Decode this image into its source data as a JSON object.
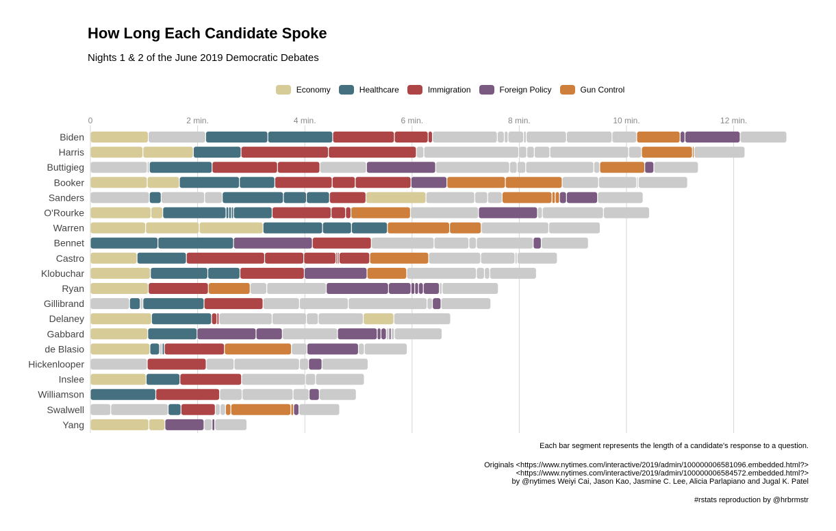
{
  "title": "How Long Each Candidate Spoke",
  "subtitle": "Nights 1 & 2 of the June 2019 Democratic Debates",
  "colors": {
    "Economy": "#d7cb98",
    "Healthcare": "#45707f",
    "Immigration": "#ad4546",
    "Foreign Policy": "#7a5a80",
    "Gun Control": "#ce7f3c",
    "Other": "#cbcbcb",
    "grid": "#d4d4d4"
  },
  "chart_data": {
    "type": "bar",
    "orientation": "horizontal",
    "stacked": true,
    "x_unit": "minutes",
    "xlim": [
      0,
      13.3
    ],
    "xticks": [
      0,
      2,
      4,
      6,
      8,
      10,
      12
    ],
    "xtick_labels": [
      "0",
      "2 min.",
      "4 min.",
      "6 min.",
      "8 min.",
      "10 min.",
      "12 min."
    ],
    "legend_position": "top",
    "legend": [
      "Economy",
      "Healthcare",
      "Immigration",
      "Foreign Policy",
      "Gun Control"
    ],
    "candidates": [
      {
        "name": "Biden",
        "segments": [
          [
            "Economy",
            1.08
          ],
          [
            "Other",
            1.07
          ],
          [
            "Healthcare",
            1.16
          ],
          [
            "Healthcare",
            1.21
          ],
          [
            "Immigration",
            1.15
          ],
          [
            "Immigration",
            0.63
          ],
          [
            "Immigration",
            0.08
          ],
          [
            "Other",
            1.21
          ],
          [
            "Other",
            0.13
          ],
          [
            "Other",
            0.07
          ],
          [
            "Other",
            0.29
          ],
          [
            "Other",
            0.05
          ],
          [
            "Other",
            0.75
          ],
          [
            "Other",
            0.85
          ],
          [
            "Other",
            0.46
          ],
          [
            "Gun Control",
            0.81
          ],
          [
            "Foreign Policy",
            0.09
          ],
          [
            "Foreign Policy",
            1.03
          ],
          [
            "Other",
            0.87
          ]
        ]
      },
      {
        "name": "Harris",
        "segments": [
          [
            "Economy",
            0.98
          ],
          [
            "Economy",
            0.94
          ],
          [
            "Healthcare",
            0.89
          ],
          [
            "Immigration",
            1.63
          ],
          [
            "Immigration",
            1.64
          ],
          [
            "Other",
            0.14
          ],
          [
            "Other",
            1.77
          ],
          [
            "Other",
            0.15
          ],
          [
            "Other",
            0.14
          ],
          [
            "Other",
            0.29
          ],
          [
            "Other",
            1.47
          ],
          [
            "Other",
            0.24
          ],
          [
            "Gun Control",
            0.95
          ],
          [
            "Gun Control",
            0.03
          ],
          [
            "Other",
            0.95
          ]
        ]
      },
      {
        "name": "Buttigieg",
        "segments": [
          [
            "Other",
            1.06
          ],
          [
            "Other",
            0.04
          ],
          [
            "Healthcare",
            1.17
          ],
          [
            "Immigration",
            1.22
          ],
          [
            "Immigration",
            0.79
          ],
          [
            "Other",
            0.87
          ],
          [
            "Foreign Policy",
            1.29
          ],
          [
            "Other",
            1.38
          ],
          [
            "Other",
            0.14
          ],
          [
            "Other",
            0.16
          ],
          [
            "Other",
            1.27
          ],
          [
            "Other",
            0.11
          ],
          [
            "Gun Control",
            0.84
          ],
          [
            "Foreign Policy",
            0.17
          ],
          [
            "Other",
            0.83
          ]
        ]
      },
      {
        "name": "Booker",
        "segments": [
          [
            "Economy",
            1.06
          ],
          [
            "Economy",
            0.6
          ],
          [
            "Healthcare",
            1.12
          ],
          [
            "Healthcare",
            0.66
          ],
          [
            "Immigration",
            1.07
          ],
          [
            "Immigration",
            0.43
          ],
          [
            "Immigration",
            1.04
          ],
          [
            "Foreign Policy",
            0.67
          ],
          [
            "Gun Control",
            1.09
          ],
          [
            "Gun Control",
            1.06
          ],
          [
            "Other",
            0.68
          ],
          [
            "Other",
            0.71
          ],
          [
            "Other",
            0.03
          ],
          [
            "Other",
            0.92
          ]
        ]
      },
      {
        "name": "Sanders",
        "segments": [
          [
            "Other",
            1.1
          ],
          [
            "Healthcare",
            0.22
          ],
          [
            "Other",
            0.81
          ],
          [
            "Other",
            0.33
          ],
          [
            "Healthcare",
            1.14
          ],
          [
            "Healthcare",
            0.43
          ],
          [
            "Healthcare",
            0.43
          ],
          [
            "Immigration",
            0.68
          ],
          [
            "Economy",
            1.12
          ],
          [
            "Other",
            0.91
          ],
          [
            "Other",
            0.24
          ],
          [
            "Other",
            0.27
          ],
          [
            "Gun Control",
            0.93
          ],
          [
            "Gun Control",
            0.06
          ],
          [
            "Gun Control",
            0.08
          ],
          [
            "Foreign Policy",
            0.13
          ],
          [
            "Foreign Policy",
            0.58
          ],
          [
            "Other",
            0.85
          ]
        ]
      },
      {
        "name": "O'Rourke",
        "segments": [
          [
            "Economy",
            1.13
          ],
          [
            "Economy",
            0.22
          ],
          [
            "Healthcare",
            1.18
          ],
          [
            "Healthcare",
            0.05
          ],
          [
            "Healthcare",
            0.05
          ],
          [
            "Healthcare",
            0.04
          ],
          [
            "Healthcare",
            0.72
          ],
          [
            "Immigration",
            1.1
          ],
          [
            "Immigration",
            0.27
          ],
          [
            "Immigration",
            0.1
          ],
          [
            "Gun Control",
            1.11
          ],
          [
            "Other",
            1.27
          ],
          [
            "Foreign Policy",
            1.1
          ],
          [
            "Other",
            0.09
          ],
          [
            "Other",
            1.14
          ],
          [
            "Other",
            0.86
          ]
        ]
      },
      {
        "name": "Warren",
        "segments": [
          [
            "Economy",
            1.03
          ],
          [
            "Economy",
            1.0
          ],
          [
            "Economy",
            1.19
          ],
          [
            "Healthcare",
            1.11
          ],
          [
            "Healthcare",
            0.54
          ],
          [
            "Healthcare",
            0.67
          ],
          [
            "Gun Control",
            1.16
          ],
          [
            "Gun Control",
            0.59
          ],
          [
            "Other",
            1.26
          ],
          [
            "Other",
            0.96
          ]
        ]
      },
      {
        "name": "Bennet",
        "segments": [
          [
            "Healthcare",
            1.26
          ],
          [
            "Healthcare",
            1.41
          ],
          [
            "Foreign Policy",
            1.47
          ],
          [
            "Immigration",
            1.1
          ],
          [
            "Other",
            1.17
          ],
          [
            "Other",
            0.65
          ],
          [
            "Other",
            0.14
          ],
          [
            "Other",
            1.06
          ],
          [
            "Foreign Policy",
            0.15
          ],
          [
            "Other",
            0.88
          ]
        ]
      },
      {
        "name": "Castro",
        "segments": [
          [
            "Economy",
            0.87
          ],
          [
            "Healthcare",
            0.92
          ],
          [
            "Immigration",
            1.46
          ],
          [
            "Immigration",
            0.73
          ],
          [
            "Immigration",
            0.6
          ],
          [
            "Immigration",
            0.03
          ],
          [
            "Immigration",
            0.03
          ],
          [
            "Immigration",
            0.57
          ],
          [
            "Gun Control",
            1.1
          ],
          [
            "Other",
            0.97
          ],
          [
            "Other",
            0.64
          ],
          [
            "Other",
            0.04
          ],
          [
            "Other",
            0.75
          ]
        ]
      },
      {
        "name": "Klobuchar",
        "segments": [
          [
            "Economy",
            1.12
          ],
          [
            "Healthcare",
            1.07
          ],
          [
            "Healthcare",
            0.6
          ],
          [
            "Immigration",
            1.2
          ],
          [
            "Foreign Policy",
            1.17
          ],
          [
            "Gun Control",
            0.74
          ],
          [
            "Other",
            1.3
          ],
          [
            "Other",
            0.15
          ],
          [
            "Other",
            0.1
          ],
          [
            "Other",
            0.87
          ]
        ]
      },
      {
        "name": "Ryan",
        "segments": [
          [
            "Economy",
            1.08
          ],
          [
            "Immigration",
            1.12
          ],
          [
            "Gun Control",
            0.78
          ],
          [
            "Other",
            0.31
          ],
          [
            "Other",
            1.11
          ],
          [
            "Foreign Policy",
            1.16
          ],
          [
            "Foreign Policy",
            0.42
          ],
          [
            "Foreign Policy",
            0.07
          ],
          [
            "Foreign Policy",
            0.07
          ],
          [
            "Foreign Policy",
            0.09
          ],
          [
            "Foreign Policy",
            0.3
          ],
          [
            "Other",
            0.05
          ],
          [
            "Other",
            1.05
          ]
        ]
      },
      {
        "name": "Gillibrand",
        "segments": [
          [
            "Other",
            0.73
          ],
          [
            "Healthcare",
            0.2
          ],
          [
            "Other",
            0.05
          ],
          [
            "Healthcare",
            1.14
          ],
          [
            "Immigration",
            1.1
          ],
          [
            "Other",
            0.68
          ],
          [
            "Other",
            0.91
          ],
          [
            "Other",
            1.47
          ],
          [
            "Other",
            0.1
          ],
          [
            "Foreign Policy",
            0.16
          ],
          [
            "Other",
            0.93
          ]
        ]
      },
      {
        "name": "Delaney",
        "segments": [
          [
            "Economy",
            1.14
          ],
          [
            "Healthcare",
            1.12
          ],
          [
            "Immigration",
            0.1
          ],
          [
            "Immigration",
            0.04
          ],
          [
            "Other",
            0.99
          ],
          [
            "Other",
            0.64
          ],
          [
            "Other",
            0.22
          ],
          [
            "Other",
            0.84
          ],
          [
            "Economy",
            0.57
          ],
          [
            "Other",
            1.06
          ]
        ]
      },
      {
        "name": "Gabbard",
        "segments": [
          [
            "Economy",
            1.07
          ],
          [
            "Healthcare",
            0.92
          ],
          [
            "Foreign Policy",
            1.1
          ],
          [
            "Foreign Policy",
            0.49
          ],
          [
            "Other",
            1.03
          ],
          [
            "Foreign Policy",
            0.74
          ],
          [
            "Foreign Policy",
            0.07
          ],
          [
            "Foreign Policy",
            0.1
          ],
          [
            "Other",
            0.05
          ],
          [
            "Foreign Policy",
            0.04
          ],
          [
            "Other",
            0.06
          ],
          [
            "Other",
            0.89
          ]
        ]
      },
      {
        "name": "de Blasio",
        "segments": [
          [
            "Economy",
            1.11
          ],
          [
            "Healthcare",
            0.18
          ],
          [
            "Other",
            0.05
          ],
          [
            "Healthcare",
            0.04
          ],
          [
            "Immigration",
            1.12
          ],
          [
            "Gun Control",
            1.25
          ],
          [
            "Other",
            0.29
          ],
          [
            "Foreign Policy",
            0.96
          ],
          [
            "Other",
            0.11
          ],
          [
            "Other",
            0.8
          ]
        ]
      },
      {
        "name": "Hickenlooper",
        "segments": [
          [
            "Other",
            1.06
          ],
          [
            "Immigration",
            1.1
          ],
          [
            "Other",
            0.52
          ],
          [
            "Other",
            1.22
          ],
          [
            "Other",
            0.17
          ],
          [
            "Foreign Policy",
            0.25
          ],
          [
            "Other",
            0.86
          ]
        ]
      },
      {
        "name": "Inslee",
        "segments": [
          [
            "Economy",
            1.04
          ],
          [
            "Healthcare",
            0.63
          ],
          [
            "Immigration",
            1.15
          ],
          [
            "Other",
            1.19
          ],
          [
            "Other",
            0.19
          ],
          [
            "Other",
            0.91
          ]
        ]
      },
      {
        "name": "Williamson",
        "segments": [
          [
            "Healthcare",
            1.22
          ],
          [
            "Immigration",
            1.19
          ],
          [
            "Other",
            0.42
          ],
          [
            "Other",
            0.95
          ],
          [
            "Other",
            0.3
          ],
          [
            "Foreign Policy",
            0.19
          ],
          [
            "Other",
            0.69
          ]
        ]
      },
      {
        "name": "Swalwell",
        "segments": [
          [
            "Other",
            0.38
          ],
          [
            "Other",
            1.07
          ],
          [
            "Healthcare",
            0.24
          ],
          [
            "Immigration",
            0.64
          ],
          [
            "Other",
            0.09
          ],
          [
            "Other",
            0.1
          ],
          [
            "Gun Control",
            0.1
          ],
          [
            "Gun Control",
            1.12
          ],
          [
            "Gun Control",
            0.05
          ],
          [
            "Foreign Policy",
            0.1
          ],
          [
            "Other",
            0.76
          ]
        ]
      },
      {
        "name": "Yang",
        "segments": [
          [
            "Economy",
            1.09
          ],
          [
            "Economy",
            0.3
          ],
          [
            "Foreign Policy",
            0.73
          ],
          [
            "Other",
            0.15
          ],
          [
            "Foreign Policy",
            0.05
          ],
          [
            "Other",
            0.6
          ]
        ]
      }
    ]
  },
  "caption": {
    "note": "Each bar segment represents the length of a candidate's response to a question.",
    "originals_line1": "Originals <https://www.nytimes.com/interactive/2019/admin/100000006581096.embedded.html?>",
    "originals_line2": "<https://www.nytimes.com/interactive/2019/admin/100000006584572.embedded.html?>",
    "originals_line3": "by @nytimes Weiyi Cai, Jason Kao, Jasmine C. Lee, Alicia Parlapiano and Jugal K. Patel",
    "credit": "#rstats reproduction by @hrbrmstr"
  }
}
